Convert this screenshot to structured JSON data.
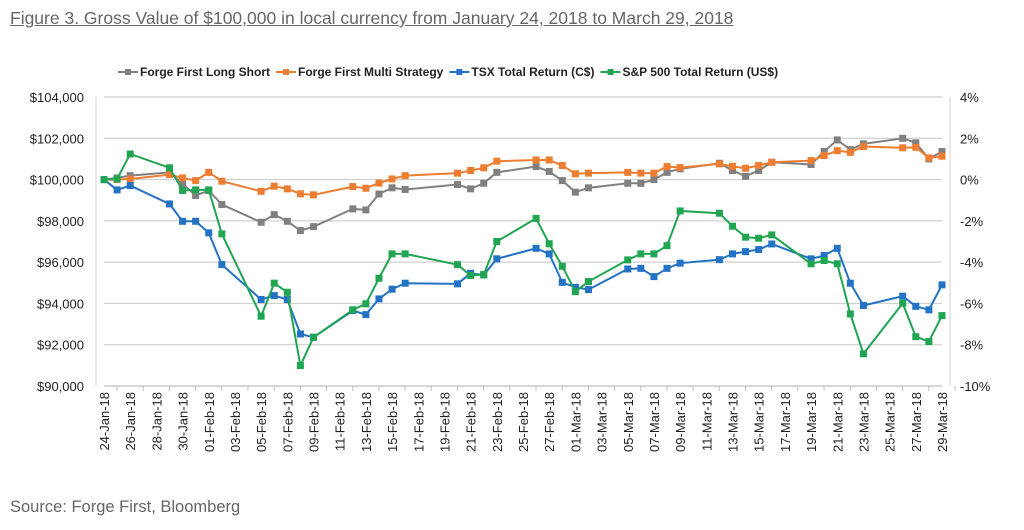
{
  "figure": {
    "title": "Figure 3. Gross Value of $100,000 in local currency from January 24, 2018 to March 29, 2018",
    "source": "Source: Forge First, Bloomberg"
  },
  "chart_data": {
    "type": "line",
    "title": "Figure 3. Gross Value of $100,000 in local currency from January 24, 2018 to March 29, 2018",
    "xlabel": "",
    "ylabel": "",
    "ylim": [
      90000,
      104000
    ],
    "y2lim": [
      -10,
      4
    ],
    "y_ticks": [
      "$90,000",
      "$92,000",
      "$94,000",
      "$96,000",
      "$98,000",
      "$100,000",
      "$102,000",
      "$104,000"
    ],
    "y2_ticks": [
      "-10%",
      "-8%",
      "-6%",
      "-4%",
      "-2%",
      "0%",
      "2%",
      "4%"
    ],
    "x_ticks": [
      "24-Jan-18",
      "26-Jan-18",
      "28-Jan-18",
      "30-Jan-18",
      "01-Feb-18",
      "03-Feb-18",
      "05-Feb-18",
      "07-Feb-18",
      "09-Feb-18",
      "11-Feb-18",
      "13-Feb-18",
      "15-Feb-18",
      "17-Feb-18",
      "19-Feb-18",
      "21-Feb-18",
      "23-Feb-18",
      "25-Feb-18",
      "27-Feb-18",
      "01-Mar-18",
      "03-Mar-18",
      "05-Mar-18",
      "07-Mar-18",
      "09-Mar-18",
      "11-Mar-18",
      "13-Mar-18",
      "15-Mar-18",
      "17-Mar-18",
      "19-Mar-18",
      "21-Mar-18",
      "23-Mar-18",
      "25-Mar-18",
      "27-Mar-18",
      "29-Mar-18"
    ],
    "grid": "horizontal",
    "legend": "top",
    "x": [
      "2018-01-24",
      "2018-01-25",
      "2018-01-26",
      "2018-01-29",
      "2018-01-30",
      "2018-01-31",
      "2018-02-01",
      "2018-02-02",
      "2018-02-05",
      "2018-02-06",
      "2018-02-07",
      "2018-02-08",
      "2018-02-09",
      "2018-02-12",
      "2018-02-13",
      "2018-02-14",
      "2018-02-15",
      "2018-02-16",
      "2018-02-20",
      "2018-02-21",
      "2018-02-22",
      "2018-02-23",
      "2018-02-26",
      "2018-02-27",
      "2018-02-28",
      "2018-03-01",
      "2018-03-02",
      "2018-03-05",
      "2018-03-06",
      "2018-03-07",
      "2018-03-08",
      "2018-03-09",
      "2018-03-12",
      "2018-03-13",
      "2018-03-14",
      "2018-03-15",
      "2018-03-16",
      "2018-03-19",
      "2018-03-20",
      "2018-03-21",
      "2018-03-22",
      "2018-03-23",
      "2018-03-26",
      "2018-03-27",
      "2018-03-28",
      "2018-03-29"
    ],
    "series": [
      {
        "name": "Forge First Long Short",
        "color": "#808080",
        "values": [
          100000,
          100080,
          100190,
          100350,
          99790,
          99230,
          99470,
          98790,
          97930,
          98300,
          97980,
          97530,
          97720,
          98580,
          98530,
          99300,
          99600,
          99520,
          99760,
          99550,
          99820,
          100350,
          100630,
          100390,
          99950,
          99390,
          99600,
          99820,
          99820,
          100000,
          100350,
          100520,
          100790,
          100440,
          100160,
          100440,
          100840,
          100730,
          101360,
          101920,
          101450,
          101730,
          102000,
          101780,
          101000,
          101360
        ]
      },
      {
        "name": "Forge First Multi Strategy",
        "color": "#ED7D31",
        "values": [
          100000,
          100000,
          100030,
          100240,
          100080,
          99950,
          100350,
          99920,
          99430,
          99680,
          99550,
          99310,
          99260,
          99660,
          99580,
          99830,
          100030,
          100190,
          100310,
          100440,
          100570,
          100890,
          100950,
          100950,
          100680,
          100280,
          100310,
          100350,
          100310,
          100310,
          100630,
          100580,
          100760,
          100640,
          100550,
          100680,
          100840,
          100920,
          101160,
          101400,
          101320,
          101600,
          101540,
          101560,
          101050,
          101130
        ]
      },
      {
        "name": "TSX Total Return (C$)",
        "color": "#2372C4",
        "values": [
          100000,
          99500,
          99710,
          98820,
          97980,
          97980,
          97420,
          95880,
          94190,
          94380,
          94190,
          92520,
          92360,
          93650,
          93460,
          94220,
          94690,
          94980,
          94950,
          95460,
          95380,
          96160,
          96670,
          96400,
          95020,
          94780,
          94670,
          95670,
          95700,
          95300,
          95700,
          95950,
          96120,
          96400,
          96510,
          96610,
          96880,
          96160,
          96320,
          96670,
          94980,
          93900,
          94350,
          93860,
          93690,
          94900
        ]
      },
      {
        "name": "S&P 500 Total Return (US$)",
        "color": "#21A553",
        "values": [
          100000,
          100030,
          101240,
          100570,
          99470,
          99500,
          99500,
          97370,
          93380,
          94980,
          94540,
          90990,
          92360,
          93690,
          93980,
          95220,
          96400,
          96400,
          95880,
          95350,
          95400,
          97000,
          98120,
          96890,
          95800,
          94570,
          95060,
          96110,
          96400,
          96400,
          96800,
          98480,
          98370,
          97740,
          97210,
          97160,
          97320,
          95920,
          96080,
          95920,
          93490,
          91560,
          94010,
          92390,
          92150,
          93410
        ]
      }
    ]
  }
}
